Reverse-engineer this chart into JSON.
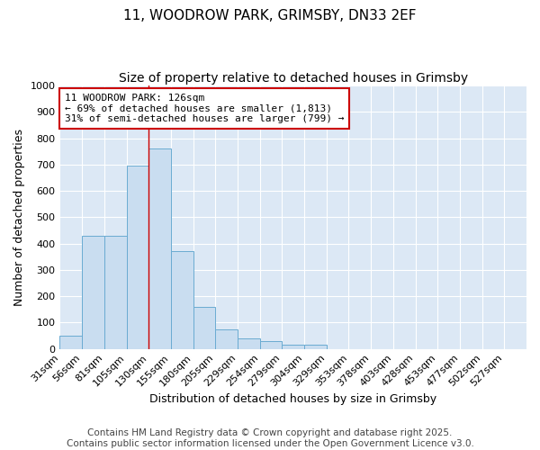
{
  "title": "11, WOODROW PARK, GRIMSBY, DN33 2EF",
  "subtitle": "Size of property relative to detached houses in Grimsby",
  "xlabel": "Distribution of detached houses by size in Grimsby",
  "ylabel": "Number of detached properties",
  "bar_labels": [
    "31sqm",
    "56sqm",
    "81sqm",
    "105sqm",
    "130sqm",
    "155sqm",
    "180sqm",
    "205sqm",
    "229sqm",
    "254sqm",
    "279sqm",
    "304sqm",
    "329sqm",
    "353sqm",
    "378sqm",
    "403sqm",
    "428sqm",
    "453sqm",
    "477sqm",
    "502sqm",
    "527sqm"
  ],
  "bar_values": [
    50,
    430,
    430,
    695,
    760,
    370,
    160,
    75,
    40,
    30,
    15,
    15,
    0,
    0,
    0,
    0,
    0,
    0,
    0,
    0,
    0
  ],
  "bar_color": "#c9ddf0",
  "bar_edge_color": "#6aabd2",
  "property_line_index": 4,
  "property_line_color": "#cc0000",
  "ylim": [
    0,
    1000
  ],
  "yticks": [
    0,
    100,
    200,
    300,
    400,
    500,
    600,
    700,
    800,
    900,
    1000
  ],
  "annotation_text": "11 WOODROW PARK: 126sqm\n← 69% of detached houses are smaller (1,813)\n31% of semi-detached houses are larger (799) →",
  "annotation_box_color": "#ffffff",
  "annotation_box_edge_color": "#cc0000",
  "footer_line1": "Contains HM Land Registry data © Crown copyright and database right 2025.",
  "footer_line2": "Contains public sector information licensed under the Open Government Licence v3.0.",
  "fig_background_color": "#ffffff",
  "plot_background_color": "#dce8f5",
  "grid_color": "#ffffff",
  "title_fontsize": 11,
  "subtitle_fontsize": 10,
  "axis_label_fontsize": 9,
  "tick_fontsize": 8,
  "annotation_fontsize": 8,
  "footer_fontsize": 7.5
}
